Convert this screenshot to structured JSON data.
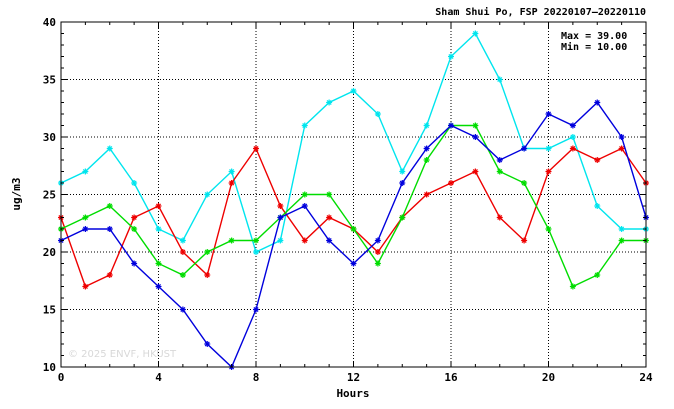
{
  "chart_data": {
    "type": "line",
    "title": "Sham Shui Po, FSP 20220107–20220110",
    "xlabel": "Hours",
    "ylabel": "ug/m3",
    "xlim": [
      0,
      24
    ],
    "ylim": [
      10,
      40
    ],
    "xticks": [
      0,
      4,
      8,
      12,
      16,
      20,
      24
    ],
    "yticks": [
      10,
      15,
      20,
      25,
      30,
      35,
      40
    ],
    "grid": true,
    "stats": {
      "max_label": "Max = 39.00",
      "min_label": "Min = 10.00"
    },
    "watermark": "© 2025  ENVF, HKUST",
    "x": [
      0,
      1,
      2,
      3,
      4,
      5,
      6,
      7,
      8,
      9,
      10,
      11,
      12,
      13,
      14,
      15,
      16,
      17,
      18,
      19,
      20,
      21,
      22,
      23,
      24
    ],
    "series": [
      {
        "color": "#00e5ee",
        "values": [
          26,
          27,
          29,
          26,
          22,
          21,
          25,
          27,
          20,
          21,
          31,
          33,
          34,
          32,
          27,
          31,
          37,
          39,
          35,
          29,
          29,
          30,
          24,
          22,
          22
        ]
      },
      {
        "color": "#ee0000",
        "values": [
          23,
          17,
          18,
          23,
          24,
          20,
          18,
          26,
          29,
          24,
          21,
          23,
          22,
          20,
          23,
          25,
          26,
          27,
          23,
          21,
          27,
          29,
          28,
          29,
          26
        ]
      },
      {
        "color": "#00dd00",
        "values": [
          22,
          23,
          24,
          22,
          19,
          18,
          20,
          21,
          21,
          23,
          25,
          25,
          22,
          19,
          23,
          28,
          31,
          31,
          27,
          26,
          22,
          17,
          18,
          21,
          21
        ]
      },
      {
        "color": "#0000dd",
        "values": [
          21,
          22,
          22,
          19,
          17,
          15,
          12,
          10,
          15,
          23,
          24,
          21,
          19,
          21,
          26,
          29,
          31,
          30,
          28,
          29,
          32,
          31,
          33,
          30,
          23
        ]
      }
    ]
  }
}
